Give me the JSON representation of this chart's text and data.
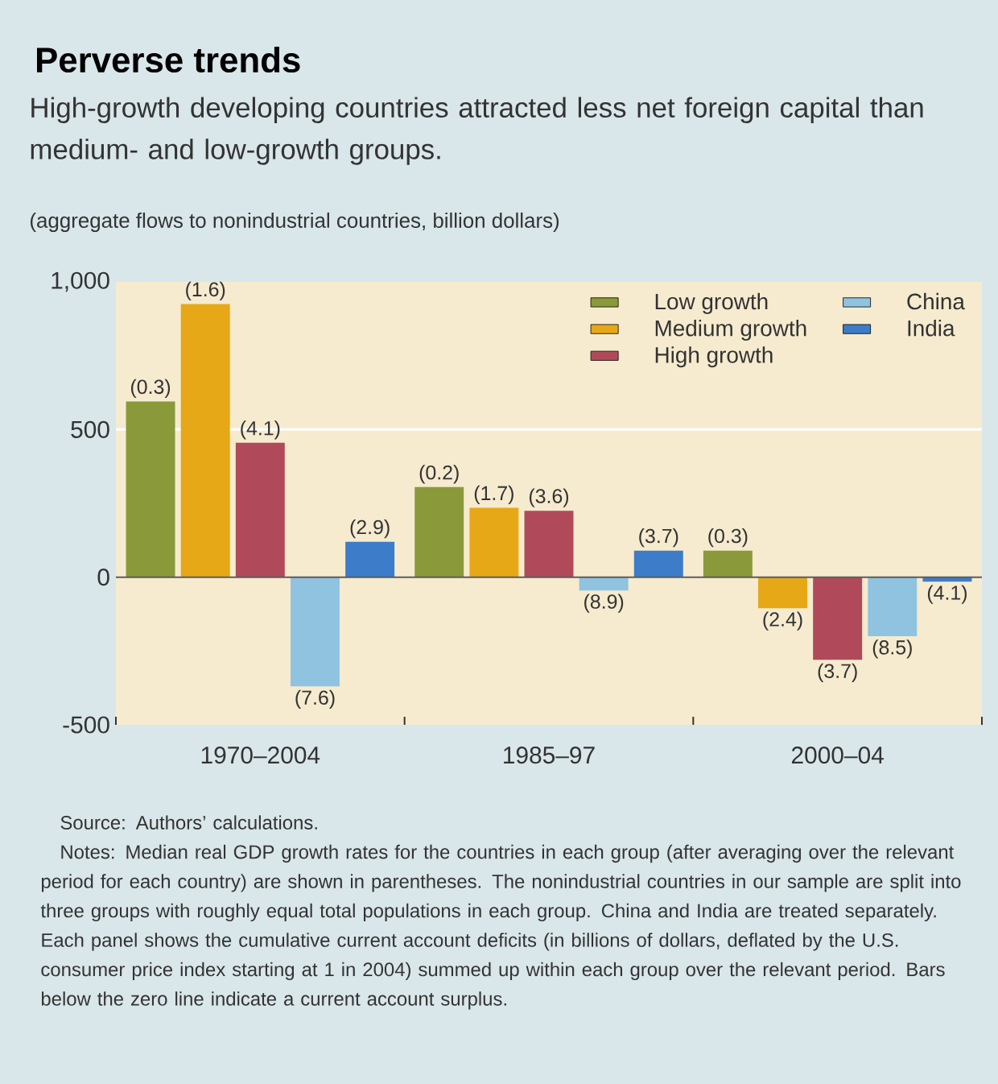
{
  "chart_data": {
    "type": "bar",
    "title": "Perverse trends",
    "subtitle": "High-growth developing countries attracted less net foreign capital than medium- and low-growth groups.",
    "annotations": [
      "(aggregate flows to nonindustrial countries, billion dollars)",
      "Source: Authors’ calculations.",
      "Notes: Median real GDP growth rates for the countries in each group (after averaging over the relevant period for each country) are shown in parentheses. The nonindustrial countries in our sample are split into three groups with roughly equal total populations in each group. China and India are treated separately. Each panel shows the cumulative current account deficits (in billions of dollars, deflated by the U.S. consumer price index starting at 1 in 2004) summed up within each group over the relevant period. Bars below the zero line indicate a current account surplus.",
      "(0.3)",
      "(1.6)",
      "(4.1)",
      "(7.6)",
      "(2.9)",
      "(0.2)",
      "(1.7)",
      "(3.6)",
      "(8.9)",
      "(3.7)",
      "(0.3)",
      "(2.4)",
      "(3.7)",
      "(8.5)",
      "(4.1)"
    ],
    "categories": [
      "1970–2004",
      "1985–97",
      "2000–04"
    ],
    "series": [
      {
        "name": "Low growth",
        "color": "#8a9a3a",
        "values": [
          595,
          305,
          90
        ]
      },
      {
        "name": "Medium growth",
        "color": "#e6a817",
        "values": [
          925,
          235,
          -105
        ]
      },
      {
        "name": "High growth",
        "color": "#b04a5a",
        "values": [
          455,
          225,
          -280
        ]
      },
      {
        "name": "China",
        "color": "#8fc3e0",
        "values": [
          -370,
          -45,
          -200
        ]
      },
      {
        "name": "India",
        "color": "#3d7cc9",
        "values": [
          120,
          90,
          -15
        ]
      }
    ],
    "ylim": [
      -500,
      1000
    ],
    "yticks": [
      -500,
      0,
      500,
      {
        "value": 1000,
        "label": "1,000"
      }
    ],
    "ref_lines": [
      {
        "axis": "y",
        "value": 500,
        "color": "#ffffff"
      }
    ],
    "legend": "top right"
  }
}
